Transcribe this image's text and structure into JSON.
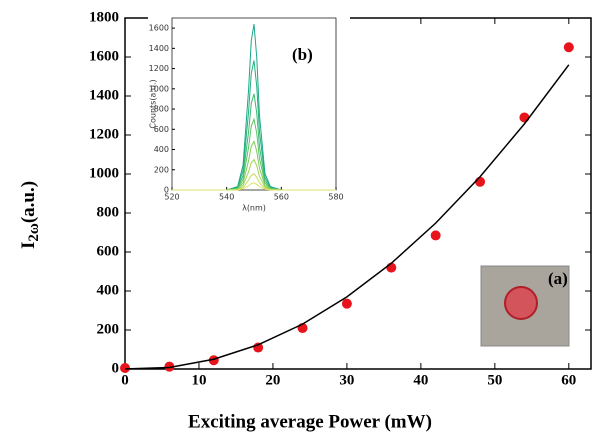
{
  "chart_data": [
    {
      "type": "scatter",
      "xlabel": "Exciting average Power (mW)",
      "ylabel_main": "I",
      "ylabel_sub": "2ω",
      "ylabel_tail": "(a.u.)",
      "annotation": "(a)",
      "xlim": [
        0,
        63
      ],
      "xticks": [
        0,
        10,
        20,
        30,
        40,
        50,
        60
      ],
      "ylim": [
        0,
        1800
      ],
      "yticks": [
        0,
        200,
        400,
        600,
        800,
        1000,
        1200,
        1400,
        1600,
        1800
      ],
      "series": [
        {
          "mode": "markers",
          "color": "#e8141c",
          "x": [
            0,
            6,
            12,
            18,
            24,
            30,
            36,
            42,
            48,
            54,
            60
          ],
          "values": [
            5,
            12,
            45,
            110,
            210,
            335,
            520,
            685,
            960,
            1290,
            1650
          ]
        },
        {
          "mode": "line",
          "color": "#000000",
          "x": [
            0,
            6,
            12,
            18,
            24,
            30,
            36,
            42,
            48,
            54,
            60
          ],
          "values": [
            0,
            8,
            50,
            124,
            230,
            370,
            542,
            748,
            986,
            1257,
            1560
          ]
        }
      ]
    },
    {
      "type": "line",
      "xlabel": "λ(nm)",
      "ylabel": "Counts(a.u.)",
      "annotation": "(b)",
      "xlim": [
        520,
        580
      ],
      "xticks": [
        520,
        540,
        560,
        580
      ],
      "ylim": [
        0,
        1700
      ],
      "yticks": [
        0,
        200,
        400,
        600,
        800,
        1000,
        1200,
        1400,
        1600
      ],
      "x": [
        520,
        540,
        544,
        546,
        548,
        549,
        550,
        551,
        552,
        554,
        556,
        560,
        580
      ],
      "series": [
        {
          "color": "#1aa88a",
          "values": [
            0,
            0,
            33,
            246,
            984,
            1476,
            1640,
            1312,
            738,
            164,
            33,
            0,
            0
          ]
        },
        {
          "color": "#20b07e",
          "values": [
            0,
            0,
            26,
            192,
            768,
            1152,
            1280,
            1024,
            576,
            128,
            26,
            0,
            0
          ]
        },
        {
          "color": "#3cba70",
          "values": [
            0,
            0,
            19,
            143,
            570,
            855,
            950,
            760,
            428,
            95,
            19,
            0,
            0
          ]
        },
        {
          "color": "#5cc265",
          "values": [
            0,
            0,
            14,
            105,
            420,
            630,
            700,
            560,
            315,
            70,
            14,
            0,
            0
          ]
        },
        {
          "color": "#7ecb5a",
          "values": [
            0,
            0,
            10,
            72,
            288,
            432,
            480,
            384,
            216,
            48,
            10,
            0,
            0
          ]
        },
        {
          "color": "#a0d355",
          "values": [
            0,
            0,
            6,
            45,
            180,
            270,
            300,
            240,
            135,
            30,
            6,
            0,
            0
          ]
        },
        {
          "color": "#c0dc58",
          "values": [
            0,
            0,
            3,
            24,
            96,
            144,
            160,
            128,
            72,
            16,
            3,
            0,
            0
          ]
        },
        {
          "color": "#dde36a",
          "values": [
            0,
            0,
            1,
            11,
            42,
            63,
            70,
            56,
            32,
            7,
            1,
            0,
            0
          ]
        }
      ]
    }
  ]
}
